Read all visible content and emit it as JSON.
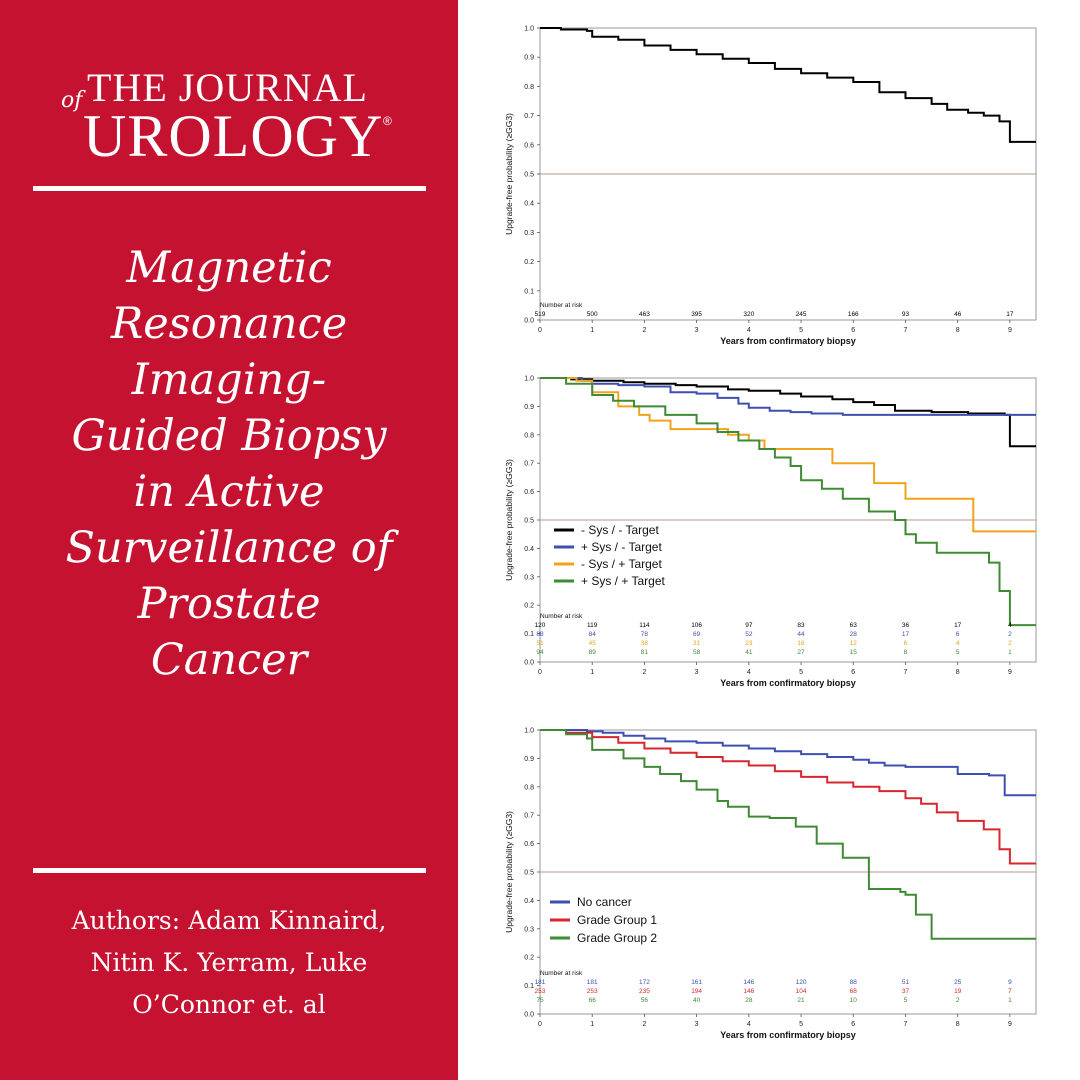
{
  "journal": {
    "of": "of",
    "the_journal": "THE JOURNAL",
    "urology": "UROLOGY",
    "reg": "®"
  },
  "title_lines": [
    "Magnetic",
    "Resonance",
    "Imaging-",
    "Guided Biopsy",
    "in Active",
    "Surveillance of",
    "Prostate",
    "Cancer"
  ],
  "author_lines": [
    "Authors: Adam Kinnaird,",
    "Nitin K. Yerram, Luke",
    "O’Connor et. al"
  ],
  "colors": {
    "brand": "#c41230",
    "black": "#000000",
    "blue": "#3e4fb0",
    "orange": "#f0a31b",
    "green": "#3f8a34",
    "red": "#d7262e",
    "reference": "#b49a86"
  },
  "chart_data": [
    {
      "type": "line",
      "xlabel": "Years from confirmatory biopsy",
      "ylabel": "Upgrade-free probability (≥GG3)",
      "xlim": [
        0,
        9.5
      ],
      "ylim": [
        0,
        1
      ],
      "x_ticks": [
        "0",
        "1",
        "2",
        "3",
        "4",
        "5",
        "6",
        "7",
        "8",
        "9"
      ],
      "y_ticks": [
        "0.0",
        "0.1",
        "0.2",
        "0.3",
        "0.4",
        "0.5",
        "0.6",
        "0.7",
        "0.8",
        "0.9",
        "1.0"
      ],
      "reference_line": 0.5,
      "risk_title": "Number at risk",
      "series": [
        {
          "color": "#000000",
          "x": [
            0,
            0.4,
            0.9,
            1.0,
            1.5,
            2.0,
            2.5,
            3.0,
            3.5,
            4.0,
            4.5,
            5.0,
            5.5,
            6.0,
            6.5,
            7.0,
            7.5,
            7.8,
            8.2,
            8.5,
            8.8,
            9.0,
            9.5
          ],
          "y": [
            1.0,
            0.995,
            0.99,
            0.97,
            0.96,
            0.94,
            0.925,
            0.91,
            0.895,
            0.88,
            0.86,
            0.845,
            0.83,
            0.815,
            0.78,
            0.76,
            0.74,
            0.72,
            0.71,
            0.7,
            0.68,
            0.61,
            0.61
          ],
          "at_risk": [
            "519",
            "500",
            "463",
            "395",
            "320",
            "245",
            "166",
            "93",
            "46",
            "17"
          ]
        }
      ]
    },
    {
      "type": "line",
      "xlabel": "Years from confirmatory biopsy",
      "ylabel": "Upgrade-free probability (≥GG3)",
      "xlim": [
        0,
        9.5
      ],
      "ylim": [
        0,
        1
      ],
      "x_ticks": [
        "0",
        "1",
        "2",
        "3",
        "4",
        "5",
        "6",
        "7",
        "8",
        "9"
      ],
      "y_ticks": [
        "0.0",
        "0.1",
        "0.2",
        "0.3",
        "0.4",
        "0.5",
        "0.6",
        "0.7",
        "0.8",
        "0.9",
        "1.0"
      ],
      "reference_line": 0.5,
      "risk_title": "Number at risk",
      "series": [
        {
          "name": "- Sys / - Target",
          "color": "#000000",
          "x": [
            0,
            0.6,
            1.0,
            1.6,
            2.0,
            2.6,
            3.0,
            3.6,
            4.0,
            4.6,
            5.0,
            5.6,
            6.0,
            6.4,
            6.8,
            7.5,
            8.2,
            8.9,
            9.0,
            9.5
          ],
          "y": [
            1.0,
            0.995,
            0.99,
            0.985,
            0.98,
            0.975,
            0.97,
            0.96,
            0.955,
            0.945,
            0.935,
            0.925,
            0.915,
            0.905,
            0.885,
            0.88,
            0.875,
            0.87,
            0.76,
            0.76
          ],
          "at_risk": [
            "120",
            "119",
            "114",
            "106",
            "97",
            "83",
            "63",
            "36",
            "17",
            "4"
          ]
        },
        {
          "name": "+ Sys / - Target",
          "color": "#3e4fb0",
          "x": [
            0,
            0.8,
            1.0,
            1.5,
            2.0,
            2.5,
            3.0,
            3.4,
            3.8,
            4.0,
            4.4,
            4.8,
            5.2,
            5.8,
            6.5,
            7.0,
            8.0,
            9.5
          ],
          "y": [
            1.0,
            0.99,
            0.98,
            0.975,
            0.97,
            0.95,
            0.945,
            0.93,
            0.91,
            0.895,
            0.885,
            0.88,
            0.875,
            0.87,
            0.87,
            0.87,
            0.87,
            0.87
          ],
          "at_risk": [
            "88",
            "84",
            "78",
            "69",
            "52",
            "44",
            "28",
            "17",
            "6",
            "2"
          ]
        },
        {
          "name": "- Sys / + Target",
          "color": "#f0a31b",
          "x": [
            0,
            0.7,
            1.0,
            1.5,
            1.9,
            2.1,
            2.5,
            3.0,
            3.6,
            4.0,
            4.3,
            5.0,
            5.6,
            6.0,
            6.3,
            6.4,
            7.0,
            7.5,
            8.0,
            8.3,
            9.5
          ],
          "y": [
            1.0,
            0.99,
            0.95,
            0.9,
            0.87,
            0.85,
            0.82,
            0.82,
            0.8,
            0.78,
            0.75,
            0.75,
            0.7,
            0.7,
            0.7,
            0.63,
            0.575,
            0.575,
            0.575,
            0.46,
            0.46
          ],
          "at_risk": [
            "51",
            "45",
            "38",
            "31",
            "23",
            "16",
            "12",
            "6",
            "4",
            "2"
          ]
        },
        {
          "name": "+ Sys / + Target",
          "color": "#3f8a34",
          "x": [
            0,
            0.5,
            1.0,
            1.4,
            1.8,
            2.4,
            3.0,
            3.4,
            3.8,
            4.2,
            4.5,
            4.8,
            5.0,
            5.4,
            5.8,
            6.3,
            6.8,
            7.0,
            7.2,
            7.6,
            8.0,
            8.6,
            8.8,
            9.0,
            9.5
          ],
          "y": [
            1.0,
            0.98,
            0.94,
            0.92,
            0.9,
            0.87,
            0.84,
            0.81,
            0.78,
            0.75,
            0.72,
            0.69,
            0.64,
            0.61,
            0.575,
            0.53,
            0.5,
            0.45,
            0.42,
            0.385,
            0.385,
            0.35,
            0.25,
            0.13,
            0.13
          ],
          "at_risk": [
            "94",
            "89",
            "81",
            "58",
            "41",
            "27",
            "15",
            "8",
            "5",
            "1"
          ]
        }
      ]
    },
    {
      "type": "line",
      "xlabel": "Years from confirmatory biopsy",
      "ylabel": "Upgrade-free probability (≥GG3)",
      "xlim": [
        0,
        9.5
      ],
      "ylim": [
        0,
        1
      ],
      "x_ticks": [
        "0",
        "1",
        "2",
        "3",
        "4",
        "5",
        "6",
        "7",
        "8",
        "9"
      ],
      "y_ticks": [
        "0.0",
        "0.1",
        "0.2",
        "0.3",
        "0.4",
        "0.5",
        "0.6",
        "0.7",
        "0.8",
        "0.9",
        "1.0"
      ],
      "reference_line": 0.5,
      "risk_title": "Number at risk",
      "series": [
        {
          "name": "No cancer",
          "color": "#3e4fb0",
          "x": [
            0,
            0.9,
            1.2,
            1.6,
            2.0,
            2.4,
            3.0,
            3.5,
            4.0,
            4.5,
            5.0,
            5.5,
            6.0,
            6.3,
            6.6,
            7.0,
            7.6,
            8.0,
            8.6,
            8.9,
            9.5
          ],
          "y": [
            1.0,
            0.995,
            0.99,
            0.98,
            0.97,
            0.96,
            0.955,
            0.945,
            0.935,
            0.925,
            0.915,
            0.905,
            0.895,
            0.885,
            0.875,
            0.87,
            0.87,
            0.845,
            0.84,
            0.77,
            0.77
          ],
          "at_risk": [
            "181",
            "181",
            "172",
            "161",
            "146",
            "120",
            "88",
            "51",
            "25",
            "9"
          ]
        },
        {
          "name": "Grade Group 1",
          "color": "#d7262e",
          "x": [
            0,
            0.5,
            1.0,
            1.5,
            2.0,
            2.5,
            3.0,
            3.5,
            4.0,
            4.5,
            5.0,
            5.5,
            6.0,
            6.5,
            7.0,
            7.3,
            7.6,
            8.0,
            8.5,
            8.8,
            9.0,
            9.5
          ],
          "y": [
            1.0,
            0.99,
            0.975,
            0.955,
            0.935,
            0.92,
            0.905,
            0.89,
            0.875,
            0.855,
            0.835,
            0.815,
            0.8,
            0.785,
            0.76,
            0.74,
            0.71,
            0.68,
            0.65,
            0.58,
            0.53,
            0.53
          ],
          "at_risk": [
            "253",
            "253",
            "235",
            "194",
            "146",
            "104",
            "68",
            "37",
            "19",
            "7"
          ]
        },
        {
          "name": "Grade Group 2",
          "color": "#3f8a34",
          "x": [
            0,
            0.5,
            0.9,
            1.0,
            1.6,
            2.0,
            2.3,
            2.7,
            3.0,
            3.4,
            3.6,
            4.0,
            4.4,
            4.9,
            5.3,
            5.8,
            6.3,
            6.9,
            7.0,
            7.2,
            7.5,
            8.0,
            9.5
          ],
          "y": [
            1.0,
            0.985,
            0.97,
            0.93,
            0.9,
            0.87,
            0.845,
            0.82,
            0.79,
            0.75,
            0.73,
            0.695,
            0.69,
            0.66,
            0.6,
            0.55,
            0.44,
            0.43,
            0.42,
            0.35,
            0.265,
            0.265,
            0.265
          ],
          "at_risk": [
            "75",
            "66",
            "56",
            "40",
            "28",
            "21",
            "10",
            "5",
            "2",
            "1"
          ]
        }
      ]
    }
  ]
}
